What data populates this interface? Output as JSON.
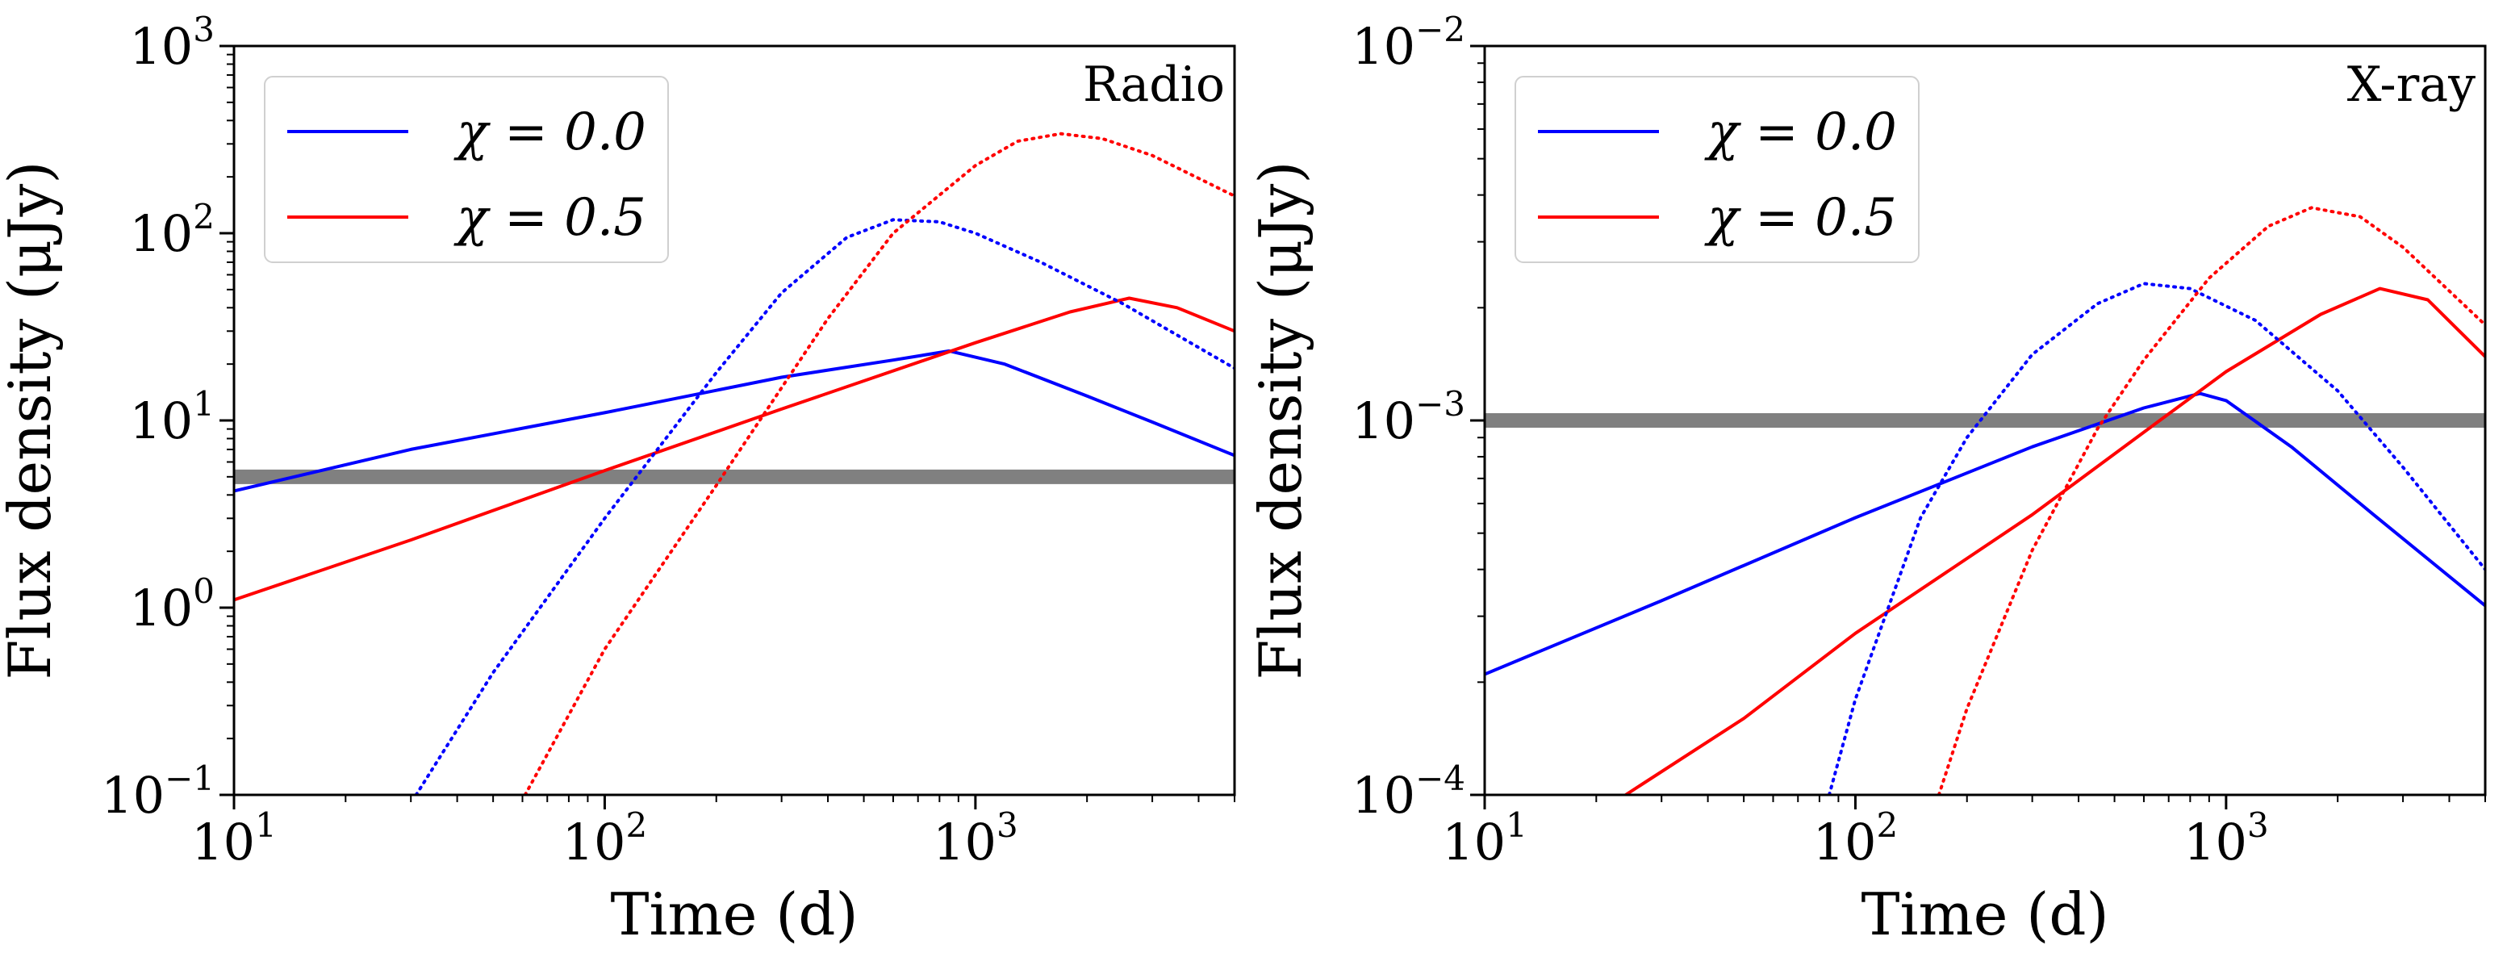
{
  "chart_data": [
    {
      "type": "line",
      "panel_label": "Radio",
      "xlabel": "Time (d)",
      "ylabel": "Flux density (μJy)",
      "xscale": "log",
      "yscale": "log",
      "xlim": [
        10,
        5000
      ],
      "ylim": [
        0.1,
        1000
      ],
      "xticks": [
        {
          "base": "10",
          "exp": "1"
        },
        {
          "base": "10",
          "exp": "2"
        },
        {
          "base": "10",
          "exp": "3"
        }
      ],
      "yticks": [
        {
          "base": "10",
          "exp": "−1"
        },
        {
          "base": "10",
          "exp": "0"
        },
        {
          "base": "10",
          "exp": "1"
        },
        {
          "base": "10",
          "exp": "2"
        },
        {
          "base": "10",
          "exp": "3"
        }
      ],
      "legend_position": "top-left",
      "threshold": {
        "y": 5.0,
        "color": "#808080"
      },
      "series": [
        {
          "name": "χ = 0.0",
          "color": "#0000ff",
          "style": "solid",
          "in_legend": true,
          "x": [
            10,
            30,
            100,
            300,
            600,
            850,
            1200,
            2000,
            3000,
            5000
          ],
          "y": [
            4.2,
            7.0,
            11.0,
            17.0,
            21.0,
            23.5,
            20.0,
            13.5,
            9.8,
            6.5
          ]
        },
        {
          "name": "χ = 0.5",
          "color": "#ff0000",
          "style": "solid",
          "in_legend": true,
          "x": [
            10,
            30,
            100,
            300,
            1000,
            1800,
            2600,
            3500,
            5000
          ],
          "y": [
            1.1,
            2.3,
            5.4,
            11.5,
            26.0,
            38.0,
            45.0,
            40.0,
            30.0
          ]
        },
        {
          "name": "χ = 0.0 (dotted)",
          "color": "#0000ff",
          "style": "dotted",
          "in_legend": false,
          "x": [
            31,
            50,
            100,
            200,
            300,
            450,
            600,
            800,
            1000,
            1500,
            2500,
            5000
          ],
          "y": [
            0.1,
            0.45,
            3.0,
            18.0,
            48.0,
            95.0,
            118.0,
            115.0,
            100.0,
            70.0,
            42.0,
            19.0
          ]
        },
        {
          "name": "χ = 0.5 (dotted)",
          "color": "#ff0000",
          "style": "dotted",
          "in_legend": false,
          "x": [
            61,
            100,
            200,
            400,
            600,
            1000,
            1300,
            1700,
            2200,
            3000,
            5000
          ],
          "y": [
            0.1,
            0.6,
            4.5,
            35.0,
            100.0,
            230.0,
            310.0,
            340.0,
            320.0,
            260.0,
            158.0
          ]
        }
      ]
    },
    {
      "type": "line",
      "panel_label": "X-ray",
      "xlabel": "Time (d)",
      "ylabel": "Flux density (μJy)",
      "xscale": "log",
      "yscale": "log",
      "xlim": [
        10,
        5000
      ],
      "ylim": [
        0.0001,
        0.01
      ],
      "xticks": [
        {
          "base": "10",
          "exp": "1"
        },
        {
          "base": "10",
          "exp": "2"
        },
        {
          "base": "10",
          "exp": "3"
        }
      ],
      "yticks": [
        {
          "base": "10",
          "exp": "−4"
        },
        {
          "base": "10",
          "exp": "−3"
        },
        {
          "base": "10",
          "exp": "−2"
        }
      ],
      "legend_position": "top-left",
      "threshold": {
        "y": 0.001,
        "color": "#808080"
      },
      "series": [
        {
          "name": "χ = 0.0",
          "color": "#0000ff",
          "style": "solid",
          "in_legend": true,
          "x": [
            10,
            30,
            100,
            300,
            600,
            850,
            1000,
            1500,
            2500,
            5000
          ],
          "y": [
            0.00021,
            0.00033,
            0.00055,
            0.00085,
            0.00108,
            0.00118,
            0.00113,
            0.00085,
            0.00056,
            0.00032
          ]
        },
        {
          "name": "χ = 0.5",
          "color": "#ff0000",
          "style": "solid",
          "in_legend": true,
          "x": [
            24,
            50,
            100,
            300,
            600,
            1000,
            1800,
            2600,
            3500,
            5000
          ],
          "y": [
            0.0001,
            0.00016,
            0.00027,
            0.00056,
            0.00093,
            0.00135,
            0.00192,
            0.00225,
            0.0021,
            0.00148
          ]
        },
        {
          "name": "χ = 0.0 (dotted)",
          "color": "#0000ff",
          "style": "dotted",
          "in_legend": false,
          "x": [
            85,
            100,
            150,
            200,
            300,
            450,
            600,
            800,
            1200,
            2000,
            3000,
            5000
          ],
          "y": [
            0.0001,
            0.00018,
            0.00055,
            0.0009,
            0.0015,
            0.00205,
            0.00232,
            0.00225,
            0.00185,
            0.0012,
            0.00075,
            0.0004
          ]
        },
        {
          "name": "χ = 0.5 (dotted)",
          "color": "#ff0000",
          "style": "dotted",
          "in_legend": false,
          "x": [
            168,
            200,
            300,
            450,
            600,
            900,
            1300,
            1700,
            2300,
            3000,
            5000
          ],
          "y": [
            0.0001,
            0.00017,
            0.00045,
            0.00095,
            0.00145,
            0.0024,
            0.0033,
            0.0037,
            0.0035,
            0.0029,
            0.0018
          ]
        }
      ]
    }
  ]
}
